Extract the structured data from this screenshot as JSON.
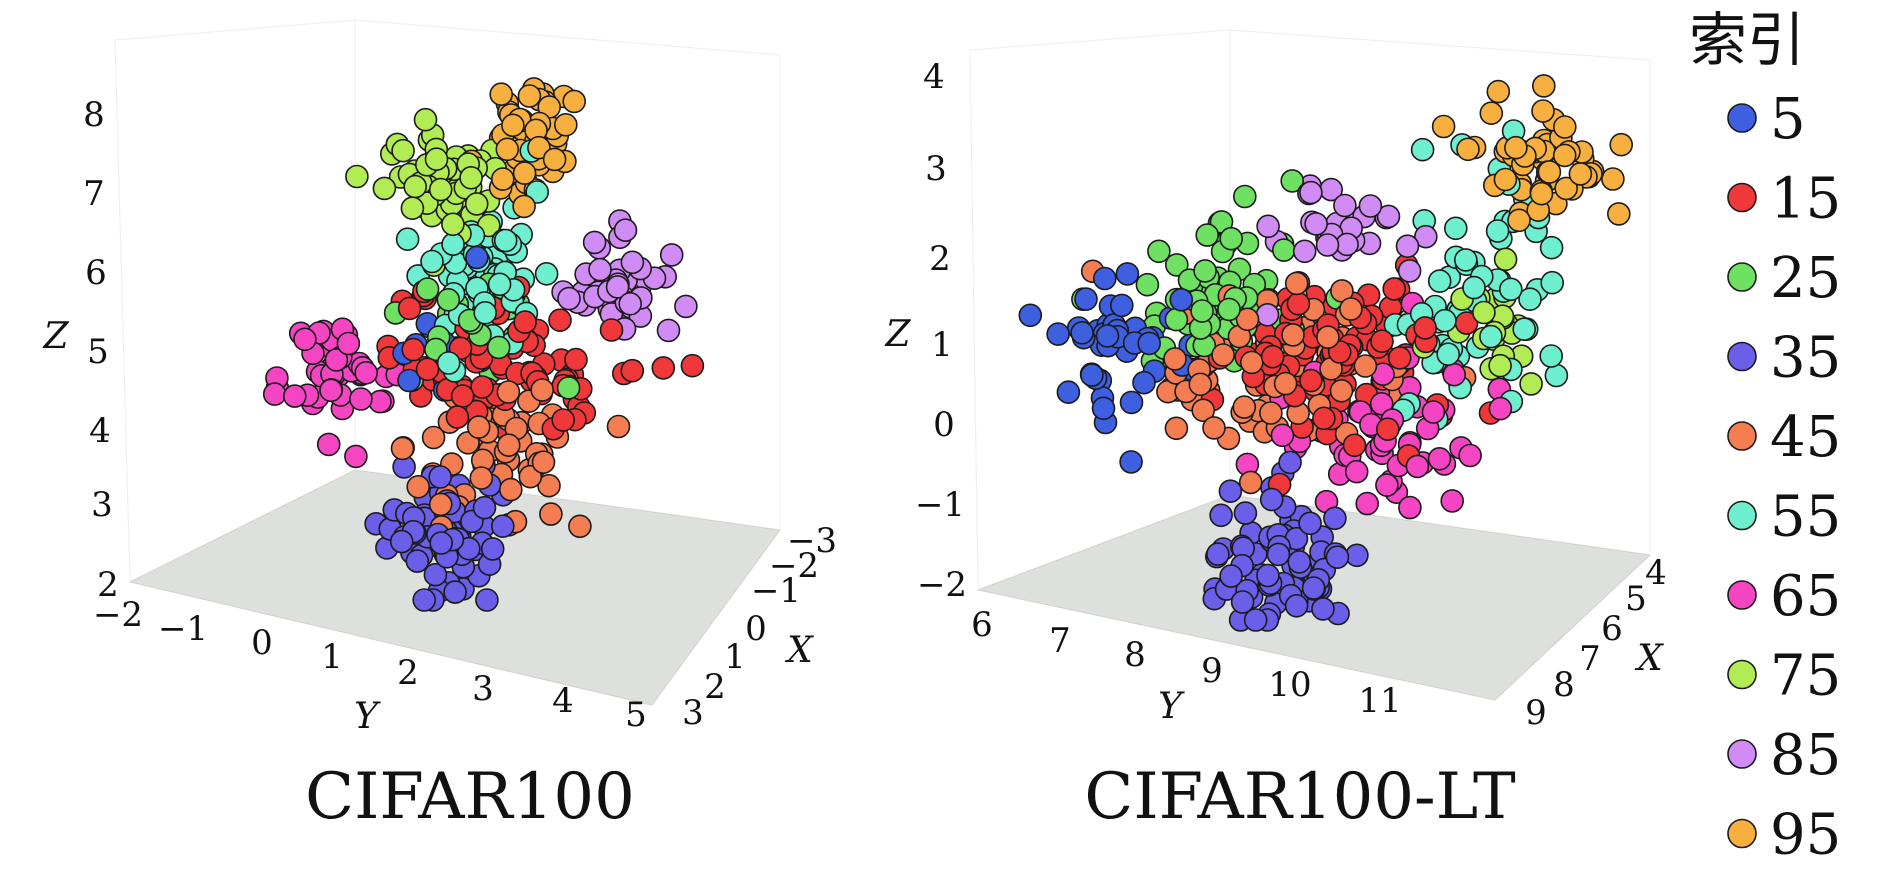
{
  "chart_data": [
    {
      "type": "scatter",
      "subtitle": "CIFAR100",
      "xlabel": "X",
      "ylabel": "Y",
      "zlabel": "Z",
      "x_ticks": [
        "−3",
        "−2",
        "−1",
        "0",
        "1",
        "2",
        "3"
      ],
      "y_ticks": [
        "−2",
        "−1",
        "0",
        "1",
        "2",
        "3",
        "4",
        "5"
      ],
      "z_ticks": [
        "2",
        "3",
        "4",
        "5",
        "6",
        "7",
        "8"
      ],
      "xlim": [
        -3,
        3
      ],
      "ylim": [
        -2,
        5
      ],
      "zlim": [
        2,
        8
      ],
      "clusters": [
        {
          "index": "5",
          "color": "#3d5fe0",
          "center": [
            0.2,
            1.6,
            5.0
          ],
          "spread": [
            0.6,
            0.6,
            0.6
          ],
          "count": 12
        },
        {
          "index": "15",
          "color": "#f0383a",
          "center": [
            0.2,
            2.6,
            5.1
          ],
          "spread": [
            0.5,
            0.9,
            0.5
          ],
          "count": 80
        },
        {
          "index": "25",
          "color": "#6ee062",
          "center": [
            0.0,
            1.8,
            5.4
          ],
          "spread": [
            0.5,
            0.6,
            0.5
          ],
          "count": 22
        },
        {
          "index": "35",
          "color": "#6b5ee8",
          "center": [
            1.5,
            2.2,
            2.9
          ],
          "spread": [
            0.4,
            0.4,
            0.5
          ],
          "count": 70
        },
        {
          "index": "45",
          "color": "#f47e52",
          "center": [
            1.6,
            3.2,
            4.3
          ],
          "spread": [
            0.5,
            0.6,
            0.5
          ],
          "count": 55
        },
        {
          "index": "55",
          "color": "#6ef0d0",
          "center": [
            -1.0,
            1.3,
            5.9
          ],
          "spread": [
            0.4,
            0.5,
            0.6
          ],
          "count": 60
        },
        {
          "index": "65",
          "color": "#f545c2",
          "center": [
            0.9,
            0.1,
            4.8
          ],
          "spread": [
            0.4,
            0.4,
            0.4
          ],
          "count": 45
        },
        {
          "index": "75",
          "color": "#b2ec54",
          "center": [
            -2.3,
            -0.1,
            6.8
          ],
          "spread": [
            0.3,
            0.4,
            0.4
          ],
          "count": 55
        },
        {
          "index": "85",
          "color": "#d08cf4",
          "center": [
            -0.6,
            3.8,
            6.2
          ],
          "spread": [
            0.3,
            0.4,
            0.4
          ],
          "count": 45
        },
        {
          "index": "95",
          "color": "#f7b040",
          "center": [
            -1.8,
            1.6,
            7.7
          ],
          "spread": [
            0.3,
            0.3,
            0.5
          ],
          "count": 50
        }
      ]
    },
    {
      "type": "scatter",
      "subtitle": "CIFAR100-LT",
      "xlabel": "X",
      "ylabel": "Y",
      "zlabel": "Z",
      "x_ticks": [
        "4",
        "5",
        "6",
        "7",
        "8",
        "9"
      ],
      "y_ticks": [
        "6",
        "7",
        "8",
        "9",
        "10",
        "11"
      ],
      "z_ticks": [
        "−2",
        "−1",
        "0",
        "1",
        "2",
        "3",
        "4"
      ],
      "xlim": [
        4,
        9
      ],
      "ylim": [
        6,
        11.5
      ],
      "zlim": [
        -2,
        4
      ],
      "clusters": [
        {
          "index": "5",
          "color": "#3d5fe0",
          "center": [
            7.5,
            6.9,
            1.1
          ],
          "spread": [
            0.4,
            0.3,
            0.5
          ],
          "count": 45
        },
        {
          "index": "15",
          "color": "#f0383a",
          "center": [
            6.8,
            9.4,
            1.2
          ],
          "spread": [
            0.6,
            0.7,
            0.6
          ],
          "count": 90
        },
        {
          "index": "25",
          "color": "#6ee062",
          "center": [
            6.6,
            7.6,
            1.6
          ],
          "spread": [
            0.6,
            0.6,
            0.6
          ],
          "count": 70
        },
        {
          "index": "35",
          "color": "#6b5ee8",
          "center": [
            8.2,
            9.4,
            -1.3
          ],
          "spread": [
            0.4,
            0.4,
            0.5
          ],
          "count": 75
        },
        {
          "index": "45",
          "color": "#f47e52",
          "center": [
            7.2,
            8.6,
            0.9
          ],
          "spread": [
            0.7,
            0.7,
            0.6
          ],
          "count": 75
        },
        {
          "index": "55",
          "color": "#6ef0d0",
          "center": [
            5.6,
            10.3,
            1.9
          ],
          "spread": [
            0.6,
            0.5,
            0.8
          ],
          "count": 60
        },
        {
          "index": "65",
          "color": "#f545c2",
          "center": [
            7.0,
            10.0,
            0.3
          ],
          "spread": [
            0.7,
            0.6,
            0.6
          ],
          "count": 55
        },
        {
          "index": "75",
          "color": "#b2ec54",
          "center": [
            5.8,
            10.4,
            1.5
          ],
          "spread": [
            0.5,
            0.4,
            0.4
          ],
          "count": 25
        },
        {
          "index": "85",
          "color": "#d08cf4",
          "center": [
            6.2,
            8.8,
            2.7
          ],
          "spread": [
            0.5,
            0.4,
            0.4
          ],
          "count": 30
        },
        {
          "index": "95",
          "color": "#f7b040",
          "center": [
            4.6,
            10.6,
            3.6
          ],
          "spread": [
            0.3,
            0.4,
            0.4
          ],
          "count": 55
        }
      ]
    }
  ],
  "legend": {
    "title": "索引",
    "placement": "right",
    "items": [
      {
        "label": "5",
        "color": "#3d5fe0"
      },
      {
        "label": "15",
        "color": "#f0383a"
      },
      {
        "label": "25",
        "color": "#6ee062"
      },
      {
        "label": "35",
        "color": "#6b5ee8"
      },
      {
        "label": "45",
        "color": "#f47e52"
      },
      {
        "label": "55",
        "color": "#6ef0d0"
      },
      {
        "label": "65",
        "color": "#f545c2"
      },
      {
        "label": "75",
        "color": "#b2ec54"
      },
      {
        "label": "85",
        "color": "#d08cf4"
      },
      {
        "label": "95",
        "color": "#f7b040"
      }
    ]
  }
}
